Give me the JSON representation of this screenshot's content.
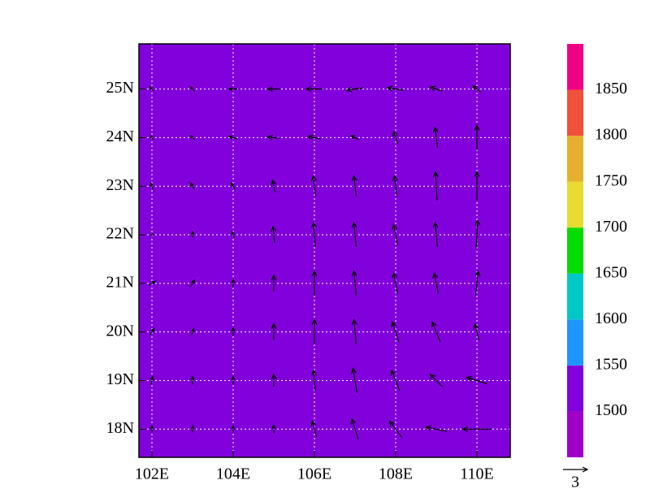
{
  "chart_data": {
    "type": "vector",
    "field_color": "#8200dc",
    "xlim": [
      101.68,
      110.82
    ],
    "ylim": [
      17.42,
      25.93
    ],
    "xticks": [
      {
        "value": 102,
        "label": "102E"
      },
      {
        "value": 104,
        "label": "104E"
      },
      {
        "value": 106,
        "label": "106E"
      },
      {
        "value": 108,
        "label": "108E"
      },
      {
        "value": 110,
        "label": "110E"
      }
    ],
    "yticks": [
      {
        "value": 18,
        "label": "18N"
      },
      {
        "value": 19,
        "label": "19N"
      },
      {
        "value": 20,
        "label": "20N"
      },
      {
        "value": 21,
        "label": "21N"
      },
      {
        "value": 22,
        "label": "22N"
      },
      {
        "value": 23,
        "label": "23N"
      },
      {
        "value": 24,
        "label": "24N"
      },
      {
        "value": 25,
        "label": "25N"
      }
    ],
    "grid": true,
    "wind": {
      "lon": [
        102,
        103,
        104,
        105,
        106,
        107,
        108,
        109,
        110
      ],
      "lat": [
        18,
        19,
        20,
        21,
        22,
        23,
        24,
        25
      ],
      "u": [
        [
          0,
          0,
          0,
          0,
          -0.5,
          -0.8,
          -1.5,
          -2.5,
          -3.5
        ],
        [
          0.2,
          0,
          0,
          0,
          -0.2,
          -0.5,
          -1,
          -1.5,
          -2.5
        ],
        [
          0.5,
          0.3,
          0,
          0,
          0,
          -0.3,
          -0.8,
          -1,
          -0.5
        ],
        [
          0.8,
          0.5,
          0,
          0,
          0,
          -0.3,
          -0.5,
          -0.5,
          0.3
        ],
        [
          0.3,
          0,
          -0.3,
          -0.2,
          -0.2,
          -0.3,
          -0.5,
          -0.3,
          0.2
        ],
        [
          -0.3,
          -0.5,
          -0.5,
          -0.3,
          -0.3,
          -0.3,
          -0.3,
          -0.2,
          0
        ],
        [
          -0.3,
          -0.5,
          -1,
          -1.5,
          -1.5,
          -1,
          -0.5,
          -0.3,
          0
        ],
        [
          -0.5,
          -0.5,
          -1,
          -1.5,
          -2,
          -2,
          -2,
          -1.5,
          -1
        ]
      ],
      "v": [
        [
          0.8,
          0.8,
          0.8,
          1,
          2,
          2.5,
          2,
          0.5,
          0
        ],
        [
          1,
          1,
          1,
          1.5,
          2.5,
          3,
          2.5,
          1.5,
          0.8
        ],
        [
          0.8,
          0.8,
          1,
          2,
          3,
          3,
          2.5,
          2.5,
          2
        ],
        [
          0.5,
          0.8,
          1,
          2,
          3,
          3,
          2.5,
          2.5,
          3
        ],
        [
          0.3,
          0.8,
          0.8,
          2,
          3,
          3,
          2.5,
          3,
          3.5
        ],
        [
          0.8,
          0.8,
          0.8,
          1.5,
          2.5,
          2.5,
          2.5,
          3.5,
          3.5
        ],
        [
          0.5,
          0.5,
          0.3,
          0.2,
          0.3,
          0.5,
          1.5,
          2.5,
          3
        ],
        [
          0.5,
          0.5,
          0,
          0,
          0,
          -0.3,
          0.3,
          0.5,
          0.8
        ]
      ]
    },
    "vector_reference": {
      "magnitude": 3
    },
    "colorbar": {
      "lim": [
        1450,
        1900
      ],
      "ticks": [
        1500,
        1550,
        1600,
        1650,
        1700,
        1750,
        1800,
        1850
      ],
      "colors": [
        "#a000c8",
        "#8200dc",
        "#1e96ff",
        "#00c8c8",
        "#00dc00",
        "#e6dc32",
        "#e6af2d",
        "#f0503c",
        "#f00082"
      ]
    }
  }
}
